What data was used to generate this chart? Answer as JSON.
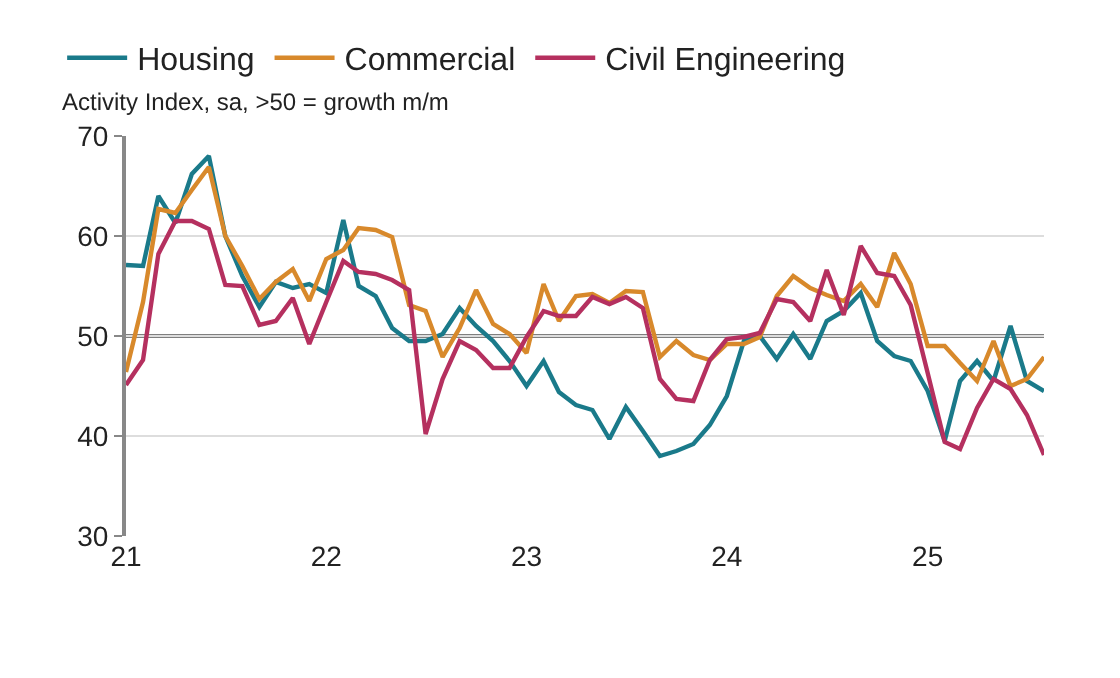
{
  "chart_data": {
    "type": "line",
    "subtitle": "Activity Index, sa, >50 = growth m/m",
    "x": [
      "2021-01",
      "2021-02",
      "2021-03",
      "2021-04",
      "2021-05",
      "2021-06",
      "2021-07",
      "2021-08",
      "2021-09",
      "2021-10",
      "2021-11",
      "2021-12",
      "2022-01",
      "2022-02",
      "2022-03",
      "2022-04",
      "2022-05",
      "2022-06",
      "2022-07",
      "2022-08",
      "2022-09",
      "2022-10",
      "2022-11",
      "2022-12",
      "2023-01",
      "2023-02",
      "2023-03",
      "2023-04",
      "2023-05",
      "2023-06",
      "2023-07",
      "2023-08",
      "2023-09",
      "2023-10",
      "2023-11",
      "2023-12",
      "2024-01",
      "2024-02",
      "2024-03",
      "2024-04",
      "2024-05",
      "2024-06",
      "2024-07",
      "2024-08",
      "2024-09",
      "2024-10",
      "2024-11",
      "2024-12",
      "2025-01",
      "2025-02",
      "2025-03",
      "2025-04",
      "2025-05",
      "2025-06",
      "2025-07",
      "2025-08"
    ],
    "series": [
      {
        "name": "Housing",
        "color": "#1a7a8a",
        "values": [
          57.1,
          57,
          64,
          61.3,
          66.2,
          68,
          60,
          56,
          52.9,
          55.4,
          54.8,
          55.2,
          54.3,
          61.6,
          55,
          54,
          50.8,
          49.5,
          49.5,
          50.2,
          52.8,
          51,
          49.5,
          47.5,
          45,
          47.5,
          44.4,
          43.1,
          42.6,
          39.7,
          42.9,
          40.5,
          38,
          38.5,
          39.2,
          41.1,
          44,
          49.5,
          50,
          47.7,
          50.2,
          47.7,
          51.5,
          52.5,
          54.3,
          49.5,
          48,
          47.5,
          44.5,
          39.5,
          45.5,
          47.5,
          45.5,
          51,
          45.5,
          44.5
        ]
      },
      {
        "name": "Commercial",
        "color": "#d8892b",
        "values": [
          46.4,
          53.4,
          62.7,
          62.3,
          64.6,
          66.9,
          60,
          57,
          53.7,
          55.4,
          56.7,
          53.5,
          57.7,
          58.6,
          60.8,
          60.6,
          59.9,
          53.1,
          52.5,
          47.9,
          50.8,
          54.6,
          51.2,
          50.2,
          48.3,
          55.2,
          51.5,
          54,
          54.2,
          53.3,
          54.5,
          54.4,
          47.9,
          49.5,
          48.1,
          47.6,
          49.2,
          49.2,
          49.9,
          54,
          56,
          54.8,
          54.1,
          53.5,
          55.2,
          52.9,
          58.3,
          55.2,
          49,
          49,
          47.3,
          45.5,
          49.5,
          45,
          45.7,
          47.9
        ]
      },
      {
        "name": "Civil Engineering",
        "color": "#b5305f",
        "values": [
          45.1,
          47.6,
          58.2,
          61.5,
          61.5,
          60.7,
          55.1,
          55,
          51.1,
          51.5,
          53.8,
          49.2,
          53.4,
          57.5,
          56.4,
          56.2,
          55.6,
          54.6,
          40.2,
          45.7,
          49.5,
          48.6,
          46.8,
          46.8,
          49.9,
          52.5,
          52,
          52,
          53.9,
          53.2,
          53.9,
          52.8,
          45.7,
          43.7,
          43.5,
          47.6,
          49.7,
          49.9,
          50.3,
          53.7,
          53.4,
          51.5,
          56.6,
          52.1,
          59,
          56.3,
          56,
          53.1,
          46.3,
          39.4,
          38.7,
          42.8,
          45.7,
          44.7,
          42.1,
          38.1
        ]
      }
    ],
    "xlim": [
      "2021-01",
      "2025-08"
    ],
    "xticks": [
      {
        "value": "2021-01",
        "label": "21"
      },
      {
        "value": "2022-01",
        "label": "22"
      },
      {
        "value": "2023-01",
        "label": "23"
      },
      {
        "value": "2024-01",
        "label": "24"
      },
      {
        "value": "2025-01",
        "label": "25"
      }
    ],
    "ylim": [
      30,
      70
    ],
    "yticks": [
      30,
      40,
      50,
      60,
      70
    ],
    "ref_lines": [
      {
        "axis": "y",
        "value": 50,
        "color": "#7f7f7f"
      }
    ],
    "grid": "y",
    "legend": "top left",
    "marker": "none",
    "line_style": "solid"
  }
}
